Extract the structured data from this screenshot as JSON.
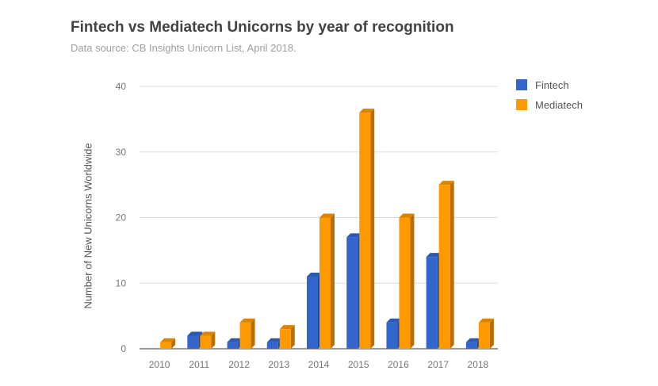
{
  "chart_data": {
    "type": "bar",
    "title": "Fintech vs Mediatech Unicorns by year of recognition",
    "subtitle": "Data source: CB Insights Unicorn List, April 2018.",
    "xlabel": "",
    "ylabel": "Number of New Unicorns Worldwide",
    "categories": [
      "2010",
      "2011",
      "2012",
      "2013",
      "2014",
      "2015",
      "2016",
      "2017",
      "2018"
    ],
    "series": [
      {
        "name": "Fintech",
        "color": "#3366cc",
        "values": [
          0,
          2,
          1,
          1,
          11,
          17,
          4,
          14,
          1
        ]
      },
      {
        "name": "Mediatech",
        "color": "#ff9900",
        "values": [
          1,
          2,
          4,
          3,
          20,
          36,
          20,
          25,
          4
        ]
      }
    ],
    "ylim": [
      0,
      40
    ],
    "yticks": [
      0,
      10,
      20,
      30,
      40
    ],
    "grid": true,
    "legend": "right",
    "style": "3d"
  }
}
